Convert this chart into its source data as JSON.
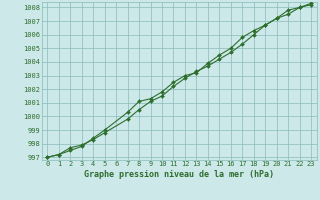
{
  "title": "Graphe pression niveau de la mer (hPa)",
  "bg_color": "#cce8e8",
  "grid_color": "#88bbbb",
  "line_color": "#2d6e2d",
  "marker_color": "#2d6e2d",
  "ylim": [
    996.8,
    1008.4
  ],
  "xlim": [
    -0.5,
    23.5
  ],
  "yticks": [
    997,
    998,
    999,
    1000,
    1001,
    1002,
    1003,
    1004,
    1005,
    1006,
    1007,
    1008
  ],
  "xticks": [
    0,
    1,
    2,
    3,
    4,
    5,
    6,
    7,
    8,
    9,
    10,
    11,
    12,
    13,
    14,
    15,
    16,
    17,
    18,
    19,
    20,
    21,
    22,
    23
  ],
  "line1_x": [
    0,
    1,
    2,
    3,
    4,
    5,
    7,
    8,
    9,
    10,
    11,
    12,
    13,
    14,
    15,
    16,
    17,
    18,
    19,
    20,
    21,
    22,
    23
  ],
  "line1_y": [
    997.0,
    997.2,
    997.7,
    997.9,
    998.3,
    998.8,
    999.8,
    1000.5,
    1001.1,
    1001.5,
    1002.2,
    1002.8,
    1003.3,
    1003.7,
    1004.2,
    1004.7,
    1005.3,
    1006.0,
    1006.7,
    1007.2,
    1007.5,
    1008.0,
    1008.3
  ],
  "line2_x": [
    0,
    1,
    2,
    3,
    4,
    5,
    7,
    8,
    9,
    10,
    11,
    12,
    13,
    14,
    15,
    16,
    17,
    18,
    19,
    20,
    21,
    22,
    23
  ],
  "line2_y": [
    997.0,
    997.2,
    997.5,
    997.8,
    998.4,
    999.0,
    1000.3,
    1001.1,
    1001.3,
    1001.8,
    1002.5,
    1003.0,
    1003.2,
    1003.9,
    1004.5,
    1005.0,
    1005.8,
    1006.3,
    1006.7,
    1007.2,
    1007.8,
    1008.0,
    1008.2
  ]
}
